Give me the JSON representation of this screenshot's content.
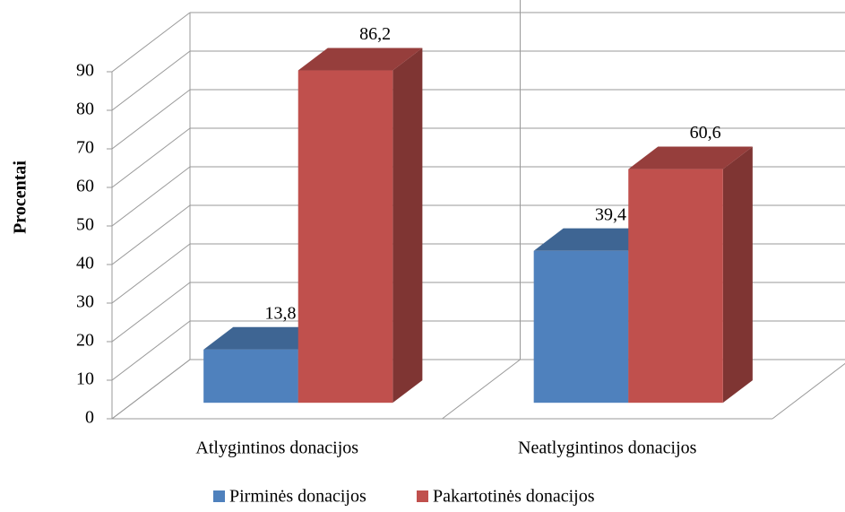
{
  "chart_data": {
    "type": "bar3d",
    "categories": [
      "Atlygintinos donacijos",
      "Neatlygintinos donacijos"
    ],
    "series": [
      {
        "name": "Pirminės donacijos",
        "color": "#4f81bd",
        "values": [
          13.8,
          39.4
        ],
        "value_labels": [
          "13,8",
          "39,4"
        ]
      },
      {
        "name": "Pakartotinės donacijos",
        "color": "#c0504d",
        "values": [
          86.2,
          60.6
        ],
        "value_labels": [
          "86,2",
          "60,6"
        ]
      }
    ],
    "y_label": "Procentai",
    "ylim": [
      0,
      90
    ],
    "yticks": [
      0,
      10,
      20,
      30,
      40,
      50,
      60,
      70,
      80,
      90
    ],
    "grid": true,
    "legend": "bottom"
  }
}
